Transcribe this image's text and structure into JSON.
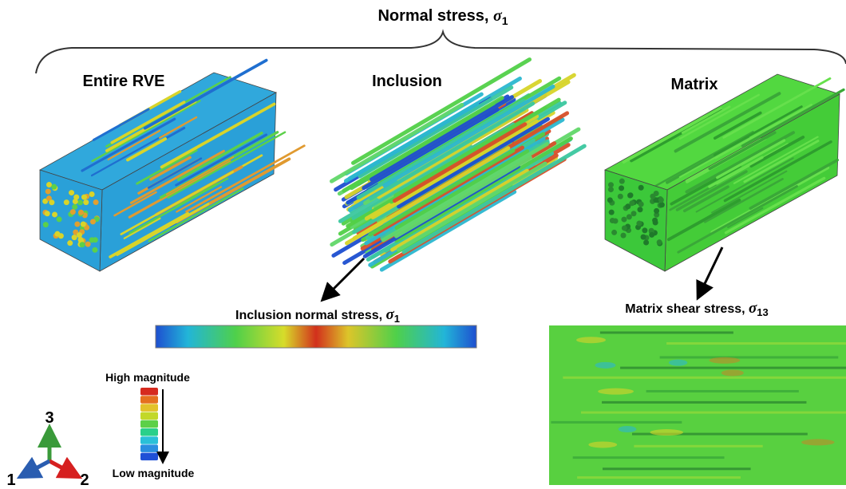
{
  "title": {
    "text": "Normal stress, ",
    "symbol": "σ",
    "subscript": "1"
  },
  "panels": [
    {
      "label": "Entire RVE"
    },
    {
      "label": "Inclusion"
    },
    {
      "label": "Matrix"
    }
  ],
  "details": [
    {
      "text": "Inclusion normal stress, ",
      "symbol": "σ",
      "subscript": "1"
    },
    {
      "text": "Matrix shear stress, ",
      "symbol": "σ",
      "subscript": "13"
    }
  ],
  "legend": {
    "high": "High magnitude",
    "low": "Low magnitude"
  },
  "axes": {
    "x1": "1",
    "x2": "2",
    "x3": "3"
  }
}
